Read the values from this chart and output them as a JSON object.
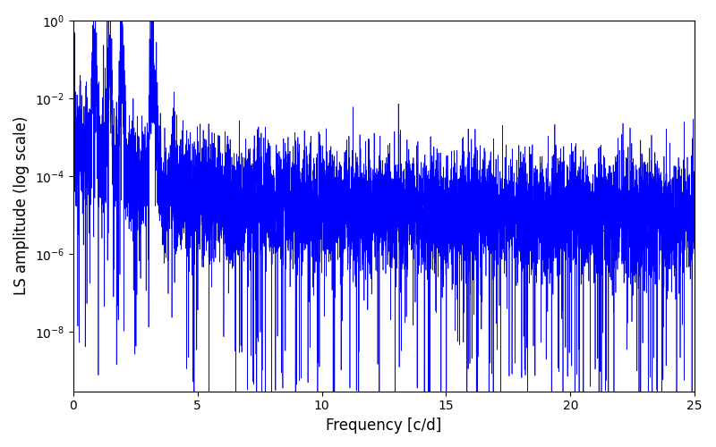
{
  "title": "",
  "xlabel": "Frequency [c/d]",
  "ylabel": "LS amplitude (log scale)",
  "xlim": [
    0,
    25
  ],
  "ylim": [
    3e-10,
    1.0
  ],
  "line_color": "#0000ff",
  "line_width": 0.5,
  "figsize": [
    8.0,
    5.0
  ],
  "dpi": 100,
  "seed": 12345,
  "n_points": 8000,
  "freq_max": 25.0,
  "background_color": "#ffffff"
}
